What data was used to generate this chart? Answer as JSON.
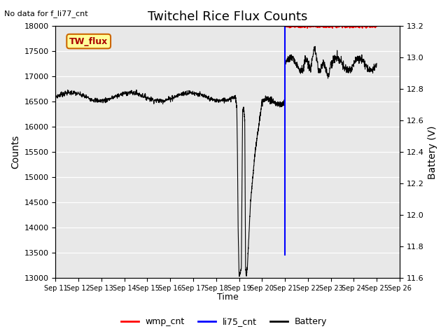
{
  "title": "Twitchel Rice Flux Counts",
  "no_data_text": "No data for f_li77_cnt",
  "xlabel": "Time",
  "ylabel_left": "Counts",
  "ylabel_right": "Battery (V)",
  "ylim_left": [
    13000,
    18000
  ],
  "ylim_right": [
    11.6,
    13.2
  ],
  "yticks_left": [
    13000,
    13500,
    14000,
    14500,
    15000,
    15500,
    16000,
    16500,
    17000,
    17500,
    18000
  ],
  "yticks_right": [
    11.6,
    11.8,
    12.0,
    12.2,
    12.4,
    12.6,
    12.8,
    13.0,
    13.2
  ],
  "xtick_labels": [
    "Sep 11",
    "Sep 12",
    "Sep 13",
    "Sep 14",
    "Sep 15",
    "Sep 16",
    "Sep 17",
    "Sep 18",
    "Sep 19",
    "Sep 20",
    "Sep 21",
    "Sep 22",
    "Sep 23",
    "Sep 24",
    "Sep 25",
    "Sep 26"
  ],
  "background_color": "#e8e8e8",
  "tw_flux_box_color": "#ffff99",
  "tw_flux_box_edge": "#cc6600",
  "legend_entries": [
    "wmp_cnt",
    "li75_cnt",
    "Battery"
  ],
  "legend_colors": [
    "red",
    "blue",
    "black"
  ],
  "battery_color": "black",
  "wmp_color": "red",
  "li75_color": "blue"
}
